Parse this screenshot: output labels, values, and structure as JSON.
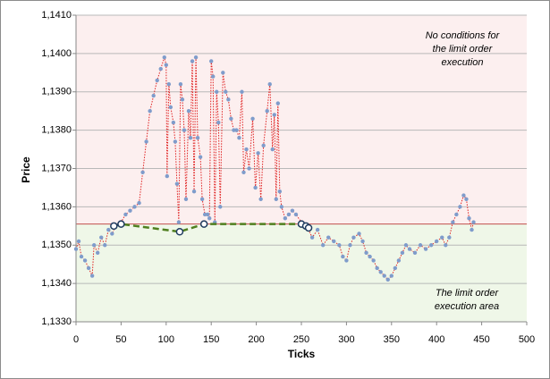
{
  "chart_data": {
    "type": "line",
    "xlabel": "Ticks",
    "ylabel": "Price",
    "xlim": [
      0,
      500
    ],
    "xticks": [
      0,
      50,
      100,
      150,
      200,
      250,
      300,
      350,
      400,
      450,
      500
    ],
    "ylim": [
      1.133,
      1.141
    ],
    "yticks": [
      {
        "value": 1.133,
        "label": "1,1330"
      },
      {
        "value": 1.134,
        "label": "1,1340"
      },
      {
        "value": 1.135,
        "label": "1,1350"
      },
      {
        "value": 1.136,
        "label": "1,1360"
      },
      {
        "value": 1.137,
        "label": "1,1370"
      },
      {
        "value": 1.138,
        "label": "1,1380"
      },
      {
        "value": 1.139,
        "label": "1,1390"
      },
      {
        "value": 1.14,
        "label": "1,1400"
      },
      {
        "value": 1.141,
        "label": "1,1410"
      }
    ],
    "grid": true,
    "reference_line": {
      "value": 1.13555,
      "color": "#c0504d",
      "above_color": "#fcefef",
      "below_color": "#eff7e8"
    },
    "series": [
      {
        "color": "#7f9ccb",
        "line_color": "#e02020",
        "line_style": "dotted",
        "x": [
          0,
          3,
          6,
          10,
          14,
          18,
          20,
          24,
          28,
          32,
          36,
          40,
          44,
          50,
          55,
          60,
          65,
          70,
          74,
          78,
          82,
          86,
          90,
          94,
          98,
          100,
          101,
          103,
          105,
          108,
          110,
          112,
          114,
          116,
          118,
          120,
          122,
          125,
          127,
          129,
          131,
          133,
          135,
          138,
          140,
          143,
          146,
          148,
          150,
          152,
          154,
          156,
          158,
          160,
          163,
          166,
          169,
          172,
          175,
          178,
          181,
          184,
          186,
          189,
          192,
          196,
          199,
          202,
          205,
          208,
          212,
          215,
          218,
          220,
          222,
          224,
          226,
          228,
          232,
          236,
          240,
          244,
          250,
          256,
          262,
          268,
          274,
          280,
          286,
          292,
          296,
          300,
          304,
          308,
          314,
          318,
          322,
          326,
          330,
          334,
          338,
          342,
          346,
          350,
          354,
          358,
          362,
          366,
          370,
          376,
          382,
          388,
          394,
          400,
          406,
          410,
          414,
          418,
          422,
          426,
          430,
          433,
          436,
          439,
          441
        ],
        "values": [
          1.1349,
          1.1351,
          1.1347,
          1.1346,
          1.1344,
          1.1342,
          1.135,
          1.1348,
          1.1352,
          1.135,
          1.1354,
          1.1353,
          1.1355,
          1.1356,
          1.1358,
          1.1359,
          1.136,
          1.1361,
          1.1369,
          1.1377,
          1.1385,
          1.1389,
          1.1393,
          1.1396,
          1.1399,
          1.1397,
          1.1368,
          1.1392,
          1.1386,
          1.1382,
          1.1377,
          1.1366,
          1.1356,
          1.1392,
          1.1388,
          1.138,
          1.1362,
          1.1385,
          1.1378,
          1.1398,
          1.1364,
          1.1399,
          1.1378,
          1.1373,
          1.1362,
          1.1358,
          1.1358,
          1.1357,
          1.1398,
          1.1394,
          1.1356,
          1.139,
          1.1382,
          1.136,
          1.1395,
          1.139,
          1.1388,
          1.1383,
          1.138,
          1.138,
          1.1378,
          1.139,
          1.1369,
          1.1375,
          1.137,
          1.1383,
          1.1365,
          1.1374,
          1.1362,
          1.1376,
          1.1385,
          1.1392,
          1.1375,
          1.1384,
          1.1362,
          1.1387,
          1.1364,
          1.136,
          1.1357,
          1.1358,
          1.1359,
          1.1358,
          1.1356,
          1.1355,
          1.1352,
          1.1354,
          1.135,
          1.1352,
          1.1351,
          1.135,
          1.1347,
          1.1346,
          1.135,
          1.1352,
          1.1353,
          1.1351,
          1.1348,
          1.1347,
          1.1346,
          1.1344,
          1.1343,
          1.1342,
          1.1341,
          1.1342,
          1.1344,
          1.1346,
          1.1348,
          1.135,
          1.1349,
          1.1348,
          1.135,
          1.1349,
          1.135,
          1.1351,
          1.1352,
          1.135,
          1.1352,
          1.1356,
          1.1358,
          1.136,
          1.1363,
          1.1362,
          1.1357,
          1.1354,
          1.1356
        ]
      },
      {
        "color": "#ffffff",
        "line_color": "#4f7f1f",
        "line_style": "dashed",
        "x": [
          42,
          50,
          115,
          142,
          250,
          255,
          258
        ],
        "values": [
          1.1355,
          1.13555,
          1.13535,
          1.13555,
          1.13555,
          1.1355,
          1.13545
        ]
      }
    ],
    "annotations": [
      {
        "lines": [
          "No conditions for",
          "the limit order",
          "execution"
        ],
        "color": "#c0304d"
      },
      {
        "lines": [
          "The limit order",
          "execution area"
        ],
        "color": "#5f8f1f"
      }
    ]
  }
}
